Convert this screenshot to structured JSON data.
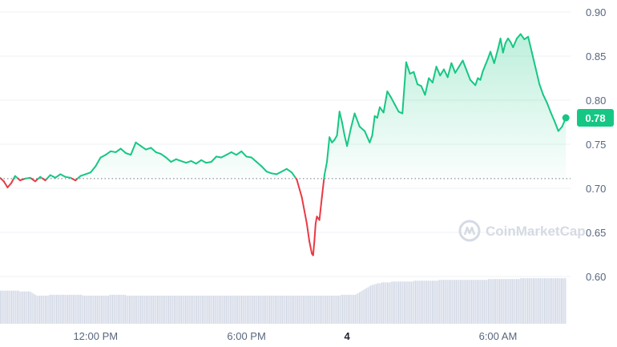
{
  "watermark": {
    "text": "CoinMarketCap",
    "icon": "coinmarketcap-logo-icon"
  },
  "colors": {
    "up": "#16c784",
    "down": "#ea3943",
    "grid": "#eff2f5",
    "baseline": "#707a8a",
    "volume": "#cfd6e4",
    "badge": "#16c784"
  },
  "chart_data": {
    "type": "line",
    "title": "",
    "xlabel": "",
    "ylabel": "",
    "ylim": [
      0.55,
      0.9
    ],
    "y_ticks": [
      "0.60",
      "0.65",
      "0.70",
      "0.75",
      "0.80",
      "0.85",
      "0.90"
    ],
    "x_ticks": [
      {
        "label": "12:00 PM",
        "t": 14,
        "bold": false
      },
      {
        "label": "6:00 PM",
        "t": 20,
        "bold": false
      },
      {
        "label": "4",
        "t": 24,
        "bold": true
      },
      {
        "label": "6:00 AM",
        "t": 30,
        "bold": false
      }
    ],
    "xlim": [
      10.2,
      34.0
    ],
    "baseline_price": 0.711,
    "current_price": {
      "value": 0.78,
      "label": "0.78"
    },
    "grid": true,
    "series": [
      {
        "x": [
          10.2,
          10.35,
          10.5,
          10.65,
          10.8,
          11.0,
          11.2,
          11.4,
          11.6,
          11.8,
          12.0,
          12.2,
          12.4,
          12.6,
          12.8,
          13.0,
          13.2,
          13.4,
          13.6,
          13.8,
          14.0,
          14.2,
          14.4,
          14.6,
          14.8,
          15.0,
          15.2,
          15.4,
          15.6,
          15.8,
          16.0,
          16.2,
          16.4,
          16.6,
          16.8,
          17.0,
          17.2,
          17.4,
          17.6,
          17.8,
          18.0,
          18.2,
          18.4,
          18.6,
          18.8,
          19.0,
          19.2,
          19.4,
          19.6,
          19.8,
          20.0,
          20.2,
          20.4,
          20.6,
          20.8,
          21.0,
          21.2,
          21.4,
          21.6,
          21.8,
          22.0,
          22.2,
          22.4,
          22.5,
          22.6,
          22.65,
          22.7,
          22.75,
          22.8,
          22.9,
          23.0,
          23.1,
          23.2,
          23.3,
          23.4,
          23.5,
          23.6,
          23.7,
          23.8,
          23.9,
          24.0,
          24.15,
          24.3,
          24.5,
          24.7,
          24.9,
          25.0,
          25.1,
          25.2,
          25.3,
          25.45,
          25.6,
          25.75,
          25.9,
          26.05,
          26.2,
          26.35,
          26.5,
          26.65,
          26.8,
          26.95,
          27.1,
          27.25,
          27.4,
          27.55,
          27.7,
          27.85,
          28.0,
          28.15,
          28.3,
          28.45,
          28.6,
          28.75,
          28.9,
          29.0,
          29.1,
          29.2,
          29.3,
          29.4,
          29.5,
          29.6,
          29.7,
          29.85,
          30.0,
          30.1,
          30.2,
          30.3,
          30.4,
          30.5,
          30.6,
          30.75,
          30.9,
          31.05,
          31.2,
          31.35,
          31.5,
          31.65,
          31.8,
          31.95,
          32.1,
          32.25,
          32.4,
          32.55,
          32.7
        ],
        "y": [
          0.712,
          0.708,
          0.701,
          0.706,
          0.714,
          0.709,
          0.711,
          0.712,
          0.708,
          0.713,
          0.709,
          0.715,
          0.712,
          0.716,
          0.713,
          0.712,
          0.709,
          0.714,
          0.716,
          0.718,
          0.725,
          0.735,
          0.738,
          0.742,
          0.741,
          0.745,
          0.74,
          0.738,
          0.752,
          0.748,
          0.744,
          0.746,
          0.741,
          0.739,
          0.735,
          0.73,
          0.733,
          0.731,
          0.729,
          0.731,
          0.728,
          0.732,
          0.729,
          0.73,
          0.736,
          0.735,
          0.738,
          0.741,
          0.738,
          0.742,
          0.736,
          0.735,
          0.73,
          0.725,
          0.719,
          0.717,
          0.716,
          0.719,
          0.722,
          0.718,
          0.71,
          0.69,
          0.66,
          0.64,
          0.626,
          0.624,
          0.64,
          0.66,
          0.668,
          0.664,
          0.69,
          0.715,
          0.73,
          0.758,
          0.752,
          0.755,
          0.76,
          0.787,
          0.775,
          0.76,
          0.748,
          0.768,
          0.785,
          0.77,
          0.765,
          0.752,
          0.76,
          0.782,
          0.78,
          0.792,
          0.786,
          0.81,
          0.803,
          0.795,
          0.787,
          0.785,
          0.843,
          0.83,
          0.832,
          0.818,
          0.816,
          0.806,
          0.825,
          0.82,
          0.838,
          0.828,
          0.835,
          0.826,
          0.842,
          0.831,
          0.838,
          0.845,
          0.834,
          0.823,
          0.82,
          0.817,
          0.825,
          0.823,
          0.833,
          0.84,
          0.847,
          0.855,
          0.842,
          0.858,
          0.87,
          0.854,
          0.865,
          0.87,
          0.866,
          0.86,
          0.87,
          0.875,
          0.869,
          0.872,
          0.854,
          0.836,
          0.818,
          0.806,
          0.797,
          0.786,
          0.776,
          0.765,
          0.77,
          0.78
        ]
      }
    ],
    "volume": [
      40,
      40,
      40,
      40,
      40,
      40,
      40,
      40,
      40,
      40,
      40,
      40,
      40,
      40,
      39,
      39,
      39,
      39,
      39,
      39,
      39,
      39,
      38,
      37,
      36,
      35,
      34,
      34,
      34,
      34,
      34,
      34,
      34,
      34,
      34,
      35,
      35,
      35,
      35,
      35,
      35,
      35,
      35,
      35,
      35,
      35,
      35,
      35,
      35,
      35,
      35,
      35,
      35,
      35,
      35,
      35,
      35,
      35,
      35,
      34,
      34,
      34,
      34,
      34,
      34,
      34,
      34,
      34,
      34,
      34,
      34,
      34,
      34,
      34,
      34,
      34,
      34,
      34,
      35,
      35,
      35,
      35,
      35,
      35,
      35,
      35,
      35,
      35,
      35,
      35,
      34,
      34,
      34,
      34,
      34,
      34,
      34,
      34,
      34,
      34,
      34,
      34,
      34,
      34,
      34,
      34,
      34,
      34,
      34,
      34,
      34,
      34,
      34,
      34,
      34,
      34,
      34,
      34,
      34,
      34,
      34,
      34,
      34,
      34,
      34,
      34,
      34,
      34,
      34,
      34,
      34,
      34,
      34,
      34,
      34,
      34,
      34,
      34,
      34,
      34,
      34,
      34,
      34,
      34,
      34,
      34,
      34,
      34,
      34,
      34,
      34,
      34,
      34,
      34,
      34,
      34,
      34,
      34,
      34,
      34,
      34,
      34,
      34,
      34,
      34,
      34,
      34,
      34,
      34,
      34,
      34,
      34,
      34,
      34,
      34,
      34,
      34,
      34,
      34,
      34,
      34,
      34,
      34,
      34,
      34,
      34,
      34,
      34,
      34,
      34,
      34,
      34,
      34,
      34,
      34,
      34,
      34,
      34,
      34,
      34,
      34,
      34,
      34,
      34,
      34,
      34,
      34,
      34,
      34,
      34,
      34,
      34,
      34,
      34,
      34,
      34,
      34,
      34,
      34,
      34,
      34,
      34,
      34,
      34,
      34,
      34,
      34,
      34,
      34,
      34,
      34,
      34,
      34,
      34,
      34,
      34,
      34,
      34,
      34,
      34,
      34,
      34,
      34,
      35,
      35,
      35,
      35,
      35,
      35,
      35,
      35,
      35,
      35,
      35,
      36,
      37,
      38,
      39,
      40,
      41,
      42,
      43,
      44,
      45,
      46,
      47,
      47,
      48,
      48,
      49,
      49,
      49,
      50,
      50,
      50,
      50,
      50,
      50,
      50,
      51,
      51,
      51,
      51,
      51,
      51,
      51,
      51,
      51,
      51,
      51,
      51,
      51,
      51,
      51,
      51,
      52,
      52,
      52,
      52,
      52,
      52,
      52,
      52,
      52,
      52,
      52,
      52,
      52,
      52,
      52,
      52,
      52,
      52,
      53,
      53,
      53,
      53,
      53,
      53,
      53,
      53,
      53,
      53,
      53,
      53,
      53,
      53,
      53,
      53,
      53,
      53,
      53,
      53,
      53,
      53,
      53,
      53,
      53,
      53,
      53,
      53,
      53,
      53,
      53,
      53,
      53,
      53,
      53,
      54,
      54,
      54,
      54,
      54,
      54,
      54,
      54,
      54,
      54,
      54,
      54,
      54,
      54,
      54,
      54,
      54,
      54,
      54,
      54,
      54,
      54,
      54,
      55,
      55,
      55,
      55,
      55,
      55,
      55,
      55,
      55,
      55,
      55,
      55,
      55,
      55,
      55,
      55,
      55,
      55,
      55,
      55,
      55,
      55,
      55,
      55,
      55,
      55,
      55,
      55,
      55,
      55,
      55,
      55,
      55
    ]
  }
}
